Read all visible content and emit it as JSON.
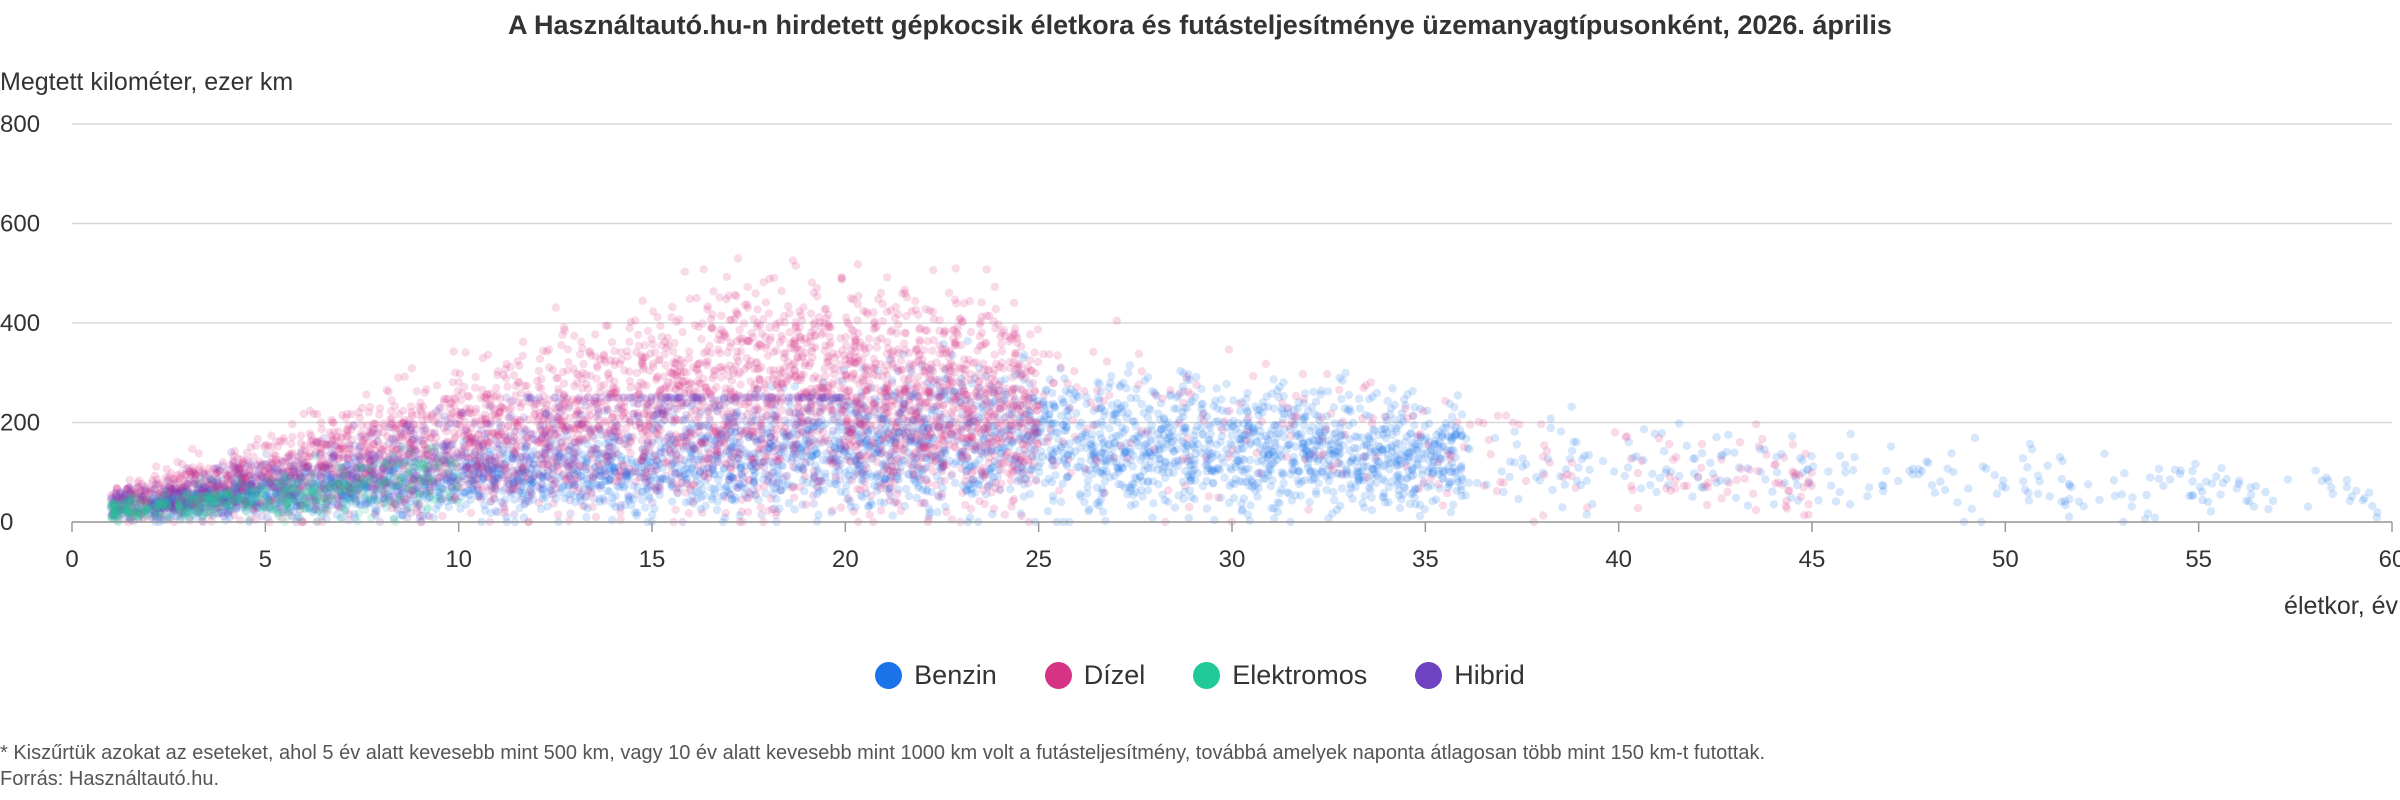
{
  "chart_data": {
    "type": "scatter",
    "title": "A Használtautó.hu-n hirdetett gépkocsik életkora és futásteljesítménye üzemanyagtípusonként, 2026. április",
    "xlabel": "életkor, év",
    "ylabel": "Megtett kilométer, ezer km",
    "xlim": [
      0,
      60
    ],
    "ylim": [
      0,
      800
    ],
    "x_ticks": [
      0,
      5,
      10,
      15,
      20,
      25,
      30,
      35,
      40,
      45,
      50,
      55,
      60
    ],
    "y_ticks": [
      0,
      200,
      400,
      600,
      800
    ],
    "grid": true,
    "legend_position": "bottom",
    "series": [
      {
        "name": "Benzin",
        "color": "#1a73e8",
        "age_range": [
          1,
          60
        ],
        "peak_age": 22,
        "mean_km_at_peak": 160,
        "max_km": 450
      },
      {
        "name": "Dízel",
        "color": "#d63384",
        "age_range": [
          1,
          45
        ],
        "peak_age": 16,
        "mean_km_at_peak": 250,
        "max_km": 600
      },
      {
        "name": "Elektromos",
        "color": "#20c997",
        "age_range": [
          1,
          10
        ],
        "peak_age": 3,
        "mean_km_at_peak": 40,
        "max_km": 150
      },
      {
        "name": "Hibrid",
        "color": "#6f42c1",
        "age_range": [
          1,
          20
        ],
        "peak_age": 4,
        "mean_km_at_peak": 80,
        "max_km": 250
      }
    ]
  },
  "footnote": {
    "note": "* Kiszűrtük azokat az eseteket, ahol 5 év alatt kevesebb mint 500 km, vagy 10 év alatt kevesebb mint 1000 km volt a futásteljesítmény, továbbá amelyek naponta átlagosan több mint 150 km-t futottak.",
    "source": "Forrás: Használtautó.hu."
  }
}
